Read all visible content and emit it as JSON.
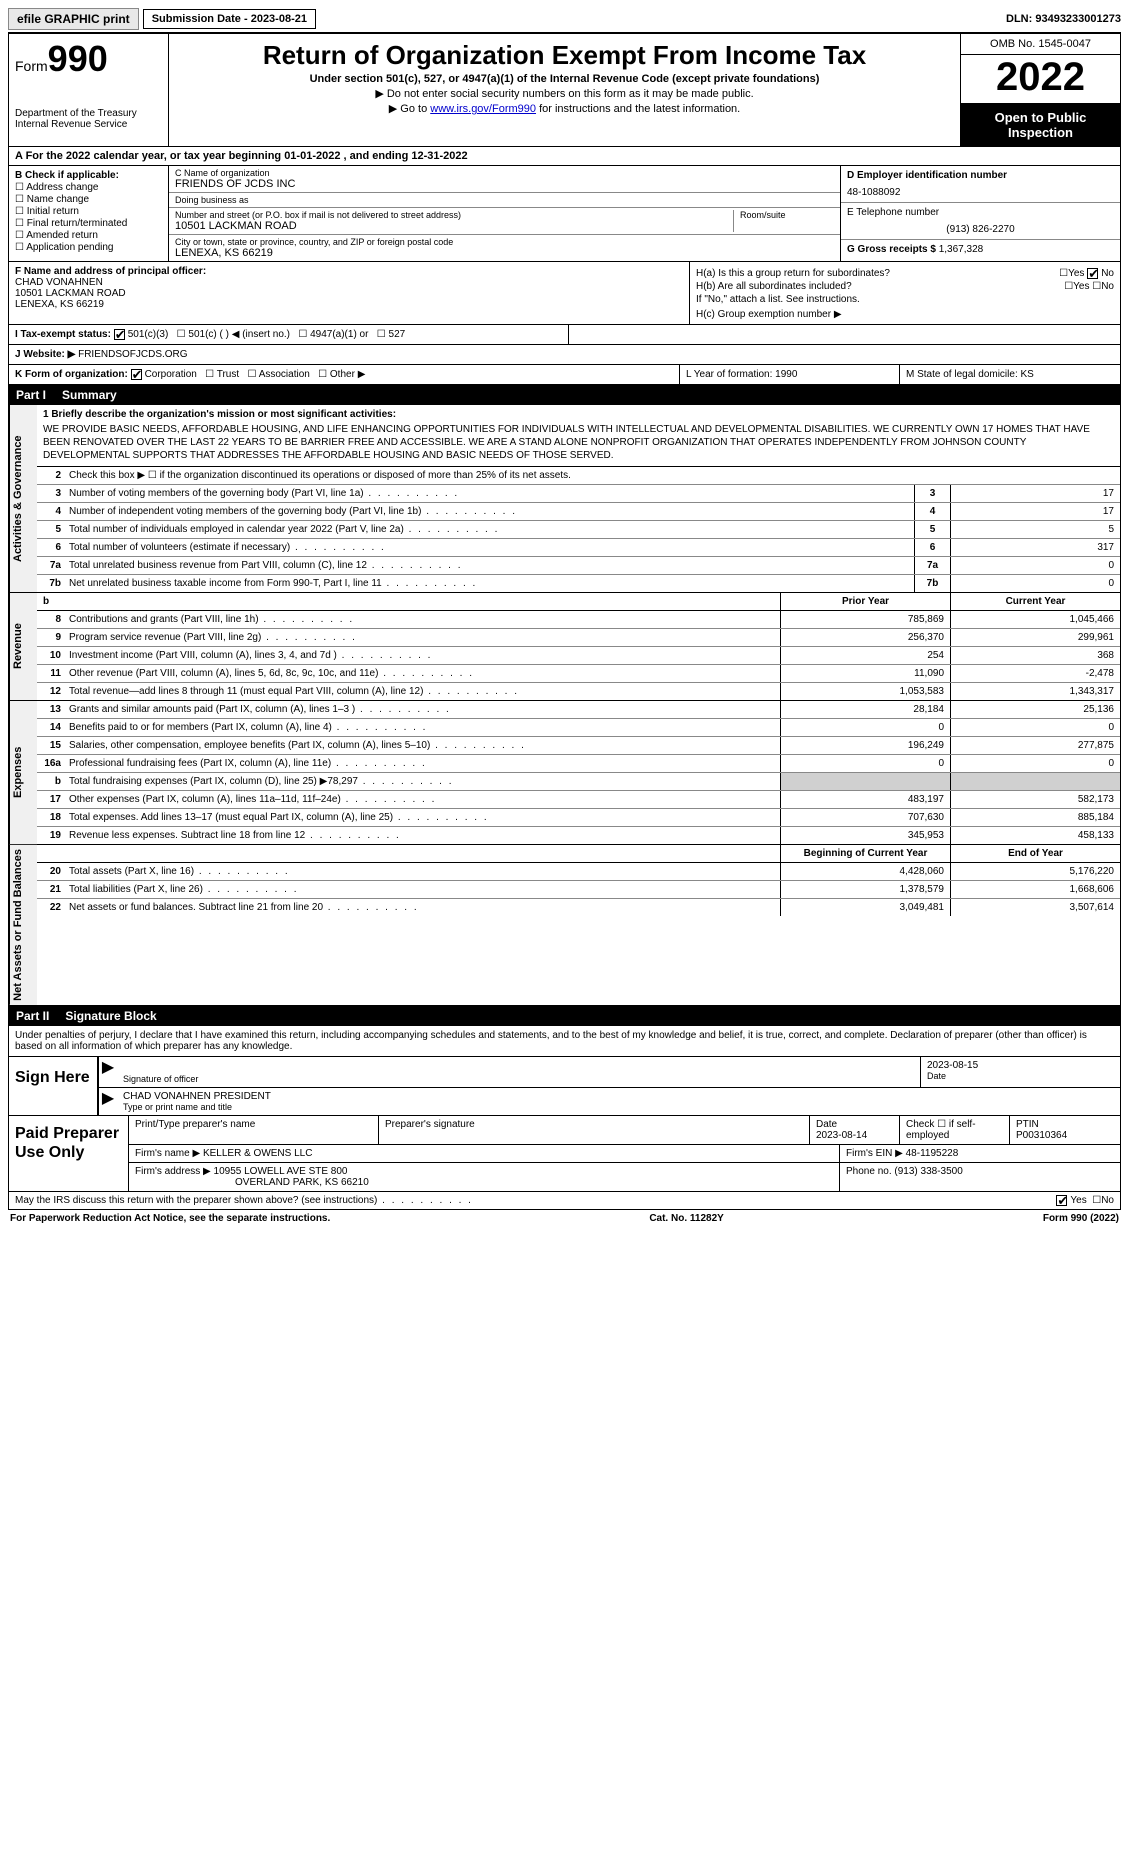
{
  "topbar": {
    "efile": "efile GRAPHIC print",
    "submission": "Submission Date - 2023-08-21",
    "dln": "DLN: 93493233001273"
  },
  "header": {
    "form_prefix": "Form",
    "form_num": "990",
    "dept": "Department of the Treasury",
    "irs": "Internal Revenue Service",
    "title": "Return of Organization Exempt From Income Tax",
    "subtitle": "Under section 501(c), 527, or 4947(a)(1) of the Internal Revenue Code (except private foundations)",
    "note1": "▶ Do not enter social security numbers on this form as it may be made public.",
    "note2_pre": "▶ Go to ",
    "note2_link": "www.irs.gov/Form990",
    "note2_post": " for instructions and the latest information.",
    "omb": "OMB No. 1545-0047",
    "year": "2022",
    "open": "Open to Public Inspection"
  },
  "row_a": "A For the 2022 calendar year, or tax year beginning 01-01-2022   , and ending 12-31-2022",
  "col_b": {
    "title": "B Check if applicable:",
    "items": [
      "Address change",
      "Name change",
      "Initial return",
      "Final return/terminated",
      "Amended return",
      "Application pending"
    ]
  },
  "col_c": {
    "name_label": "C Name of organization",
    "name": "FRIENDS OF JCDS INC",
    "dba_label": "Doing business as",
    "dba": "",
    "addr_label": "Number and street (or P.O. box if mail is not delivered to street address)",
    "room_label": "Room/suite",
    "addr": "10501 LACKMAN ROAD",
    "city_label": "City or town, state or province, country, and ZIP or foreign postal code",
    "city": "LENEXA, KS  66219"
  },
  "col_de": {
    "d_label": "D Employer identification number",
    "d_val": "48-1088092",
    "e_label": "E Telephone number",
    "e_val": "(913) 826-2270",
    "g_label": "G Gross receipts $",
    "g_val": "1,367,328"
  },
  "col_f": {
    "label": "F  Name and address of principal officer:",
    "name": "CHAD VONAHNEN",
    "addr1": "10501 LACKMAN ROAD",
    "addr2": "LENEXA, KS  66219"
  },
  "col_h": {
    "ha": "H(a)  Is this a group return for subordinates?",
    "hb": "H(b)  Are all subordinates included?",
    "hb_note": "If \"No,\" attach a list. See instructions.",
    "hc": "H(c)  Group exemption number ▶"
  },
  "row_i": {
    "label": "I   Tax-exempt status:",
    "opts": [
      "501(c)(3)",
      "501(c) (   ) ◀ (insert no.)",
      "4947(a)(1) or",
      "527"
    ]
  },
  "row_j": {
    "label": "J   Website: ▶",
    "val": "FRIENDSOFJCDS.ORG"
  },
  "row_k": {
    "label": "K Form of organization:",
    "opts": [
      "Corporation",
      "Trust",
      "Association",
      "Other ▶"
    ],
    "l": "L Year of formation: 1990",
    "m": "M State of legal domicile: KS"
  },
  "parts": {
    "p1": "Part I",
    "p1t": "Summary",
    "p2": "Part II",
    "p2t": "Signature Block"
  },
  "mission": {
    "label": "1   Briefly describe the organization's mission or most significant activities:",
    "text": "WE PROVIDE BASIC NEEDS, AFFORDABLE HOUSING, AND LIFE ENHANCING OPPORTUNITIES FOR INDIVIDUALS WITH INTELLECTUAL AND DEVELOPMENTAL DISABILITIES. WE CURRENTLY OWN 17 HOMES THAT HAVE BEEN RENOVATED OVER THE LAST 22 YEARS TO BE BARRIER FREE AND ACCESSIBLE. WE ARE A STAND ALONE NONPROFIT ORGANIZATION THAT OPERATES INDEPENDENTLY FROM JOHNSON COUNTY DEVELOPMENTAL SUPPORTS THAT ADDRESSES THE AFFORDABLE HOUSING AND BASIC NEEDS OF THOSE SERVED."
  },
  "vtabs": {
    "gov": "Activities & Governance",
    "rev": "Revenue",
    "exp": "Expenses",
    "net": "Net Assets or Fund Balances"
  },
  "gov_lines": [
    {
      "n": "2",
      "d": "Check this box ▶ ☐  if the organization discontinued its operations or disposed of more than 25% of its net assets.",
      "box": "",
      "v": ""
    },
    {
      "n": "3",
      "d": "Number of voting members of the governing body (Part VI, line 1a)",
      "box": "3",
      "v": "17"
    },
    {
      "n": "4",
      "d": "Number of independent voting members of the governing body (Part VI, line 1b)",
      "box": "4",
      "v": "17"
    },
    {
      "n": "5",
      "d": "Total number of individuals employed in calendar year 2022 (Part V, line 2a)",
      "box": "5",
      "v": "5"
    },
    {
      "n": "6",
      "d": "Total number of volunteers (estimate if necessary)",
      "box": "6",
      "v": "317"
    },
    {
      "n": "7a",
      "d": "Total unrelated business revenue from Part VIII, column (C), line 12",
      "box": "7a",
      "v": "0"
    },
    {
      "n": "7b",
      "d": "Net unrelated business taxable income from Form 990-T, Part I, line 11",
      "box": "7b",
      "v": "0"
    }
  ],
  "two_col_hdr": {
    "b": "b",
    "prior": "Prior Year",
    "curr": "Current Year"
  },
  "rev_lines": [
    {
      "n": "8",
      "d": "Contributions and grants (Part VIII, line 1h)",
      "p": "785,869",
      "c": "1,045,466"
    },
    {
      "n": "9",
      "d": "Program service revenue (Part VIII, line 2g)",
      "p": "256,370",
      "c": "299,961"
    },
    {
      "n": "10",
      "d": "Investment income (Part VIII, column (A), lines 3, 4, and 7d )",
      "p": "254",
      "c": "368"
    },
    {
      "n": "11",
      "d": "Other revenue (Part VIII, column (A), lines 5, 6d, 8c, 9c, 10c, and 11e)",
      "p": "11,090",
      "c": "-2,478"
    },
    {
      "n": "12",
      "d": "Total revenue—add lines 8 through 11 (must equal Part VIII, column (A), line 12)",
      "p": "1,053,583",
      "c": "1,343,317"
    }
  ],
  "exp_lines": [
    {
      "n": "13",
      "d": "Grants and similar amounts paid (Part IX, column (A), lines 1–3 )",
      "p": "28,184",
      "c": "25,136"
    },
    {
      "n": "14",
      "d": "Benefits paid to or for members (Part IX, column (A), line 4)",
      "p": "0",
      "c": "0"
    },
    {
      "n": "15",
      "d": "Salaries, other compensation, employee benefits (Part IX, column (A), lines 5–10)",
      "p": "196,249",
      "c": "277,875"
    },
    {
      "n": "16a",
      "d": "Professional fundraising fees (Part IX, column (A), line 11e)",
      "p": "0",
      "c": "0"
    },
    {
      "n": "b",
      "d": "Total fundraising expenses (Part IX, column (D), line 25) ▶78,297",
      "p": "",
      "c": "",
      "shaded": true
    },
    {
      "n": "17",
      "d": "Other expenses (Part IX, column (A), lines 11a–11d, 11f–24e)",
      "p": "483,197",
      "c": "582,173"
    },
    {
      "n": "18",
      "d": "Total expenses. Add lines 13–17 (must equal Part IX, column (A), line 25)",
      "p": "707,630",
      "c": "885,184"
    },
    {
      "n": "19",
      "d": "Revenue less expenses. Subtract line 18 from line 12",
      "p": "345,953",
      "c": "458,133"
    }
  ],
  "net_hdr": {
    "prior": "Beginning of Current Year",
    "curr": "End of Year"
  },
  "net_lines": [
    {
      "n": "20",
      "d": "Total assets (Part X, line 16)",
      "p": "4,428,060",
      "c": "5,176,220"
    },
    {
      "n": "21",
      "d": "Total liabilities (Part X, line 26)",
      "p": "1,378,579",
      "c": "1,668,606"
    },
    {
      "n": "22",
      "d": "Net assets or fund balances. Subtract line 21 from line 20",
      "p": "3,049,481",
      "c": "3,507,614"
    }
  ],
  "sig_intro": "Under penalties of perjury, I declare that I have examined this return, including accompanying schedules and statements, and to the best of my knowledge and belief, it is true, correct, and complete. Declaration of preparer (other than officer) is based on all information of which preparer has any knowledge.",
  "sign": {
    "here": "Sign Here",
    "sig_label": "Signature of officer",
    "date": "2023-08-15",
    "date_label": "Date",
    "name": "CHAD VONAHNEN  PRESIDENT",
    "name_label": "Type or print name and title"
  },
  "prep": {
    "title": "Paid Preparer Use Only",
    "h1": "Print/Type preparer's name",
    "h2": "Preparer's signature",
    "h3": "Date",
    "h3v": "2023-08-14",
    "h4": "Check ☐ if self-employed",
    "h5": "PTIN",
    "h5v": "P00310364",
    "firm_label": "Firm's name    ▶",
    "firm": "KELLER & OWENS LLC",
    "ein_label": "Firm's EIN ▶",
    "ein": "48-1195228",
    "addr_label": "Firm's address ▶",
    "addr1": "10955 LOWELL AVE STE 800",
    "addr2": "OVERLAND PARK, KS  66210",
    "phone_label": "Phone no.",
    "phone": "(913) 338-3500"
  },
  "discuss": "May the IRS discuss this return with the preparer shown above? (see instructions)",
  "footer": {
    "left": "For Paperwork Reduction Act Notice, see the separate instructions.",
    "mid": "Cat. No. 11282Y",
    "right": "Form 990 (2022)"
  }
}
